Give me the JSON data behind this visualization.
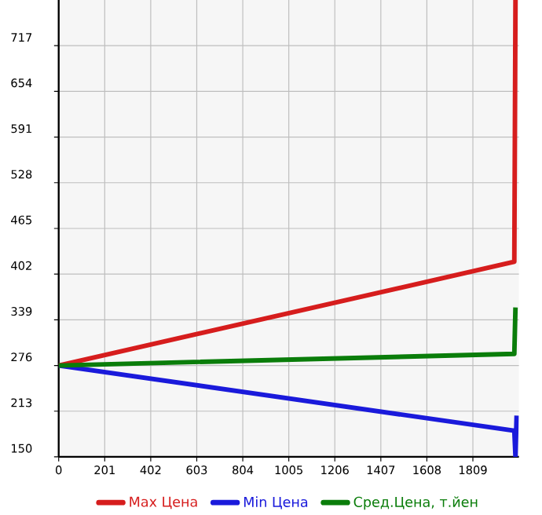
{
  "chart_data": {
    "type": "line",
    "xlim": [
      0,
      2010
    ],
    "ylim": [
      150,
      780
    ],
    "xticks": [
      0,
      201,
      402,
      603,
      804,
      1005,
      1206,
      1407,
      1608,
      1809
    ],
    "yticks": [
      150,
      213,
      276,
      339,
      402,
      465,
      528,
      591,
      654,
      717
    ],
    "grid": true,
    "legend": "bottom",
    "marker": "none",
    "line_style": "solid",
    "series": [
      {
        "name": "Max Цена",
        "color": "#d61d1d",
        "x": [
          0,
          1990,
          1995
        ],
        "values": [
          276,
          419,
          780
        ]
      },
      {
        "name": "Min Цена",
        "color": "#1a1adb",
        "x": [
          0,
          1990,
          1995,
          2000
        ],
        "values": [
          276,
          186,
          150,
          207
        ]
      },
      {
        "name": "Сред.Цена, т.йен",
        "color": "#0a7d0a",
        "x": [
          0,
          1990,
          1995
        ],
        "values": [
          276,
          292,
          356
        ]
      }
    ]
  }
}
